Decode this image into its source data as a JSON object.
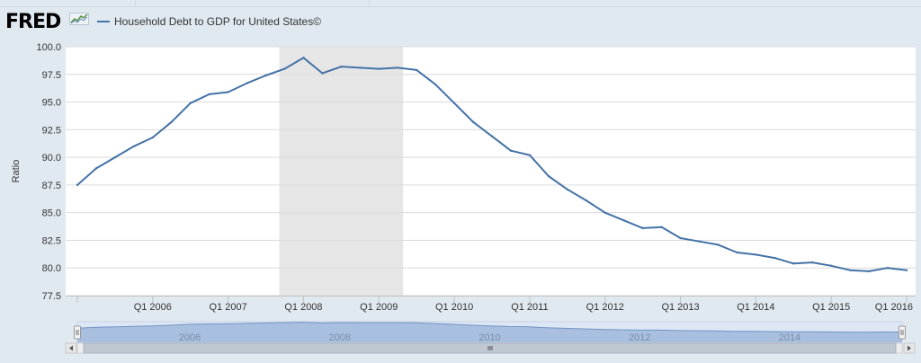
{
  "header": {
    "logo_text": "FRED",
    "legend_label": "Household Debt to GDP for United States©"
  },
  "colors": {
    "series": "#4572a7",
    "recession_band": "#e6e6e6",
    "navigator_fill": "#a9bfe0",
    "navigator_line": "#7194c6"
  },
  "chart_data": {
    "type": "line",
    "ylabel": "Ratio",
    "ylim": [
      77.5,
      100.0
    ],
    "yticks": [
      "77.5",
      "80.0",
      "82.5",
      "85.0",
      "87.5",
      "90.0",
      "92.5",
      "95.0",
      "97.5",
      "100.0"
    ],
    "xlim": [
      "2005 Q1",
      "2016 Q1"
    ],
    "xticks": [
      "Q1 2006",
      "Q1 2007",
      "Q1 2008",
      "Q1 2009",
      "Q1 2010",
      "Q1 2011",
      "Q1 2012",
      "Q1 2013",
      "Q1 2014",
      "Q1 2015",
      "Q1 2016"
    ],
    "recession": {
      "start": "2007 Q4",
      "end": "2009 Q2"
    },
    "grid": true,
    "legend_position": "top-left",
    "series": [
      {
        "name": "Household Debt to GDP for United States©",
        "x": [
          "2005 Q1",
          "2005 Q2",
          "2005 Q3",
          "2005 Q4",
          "2006 Q1",
          "2006 Q2",
          "2006 Q3",
          "2006 Q4",
          "2007 Q1",
          "2007 Q2",
          "2007 Q3",
          "2007 Q4",
          "2008 Q1",
          "2008 Q2",
          "2008 Q3",
          "2008 Q4",
          "2009 Q1",
          "2009 Q2",
          "2009 Q3",
          "2009 Q4",
          "2010 Q1",
          "2010 Q2",
          "2010 Q3",
          "2010 Q4",
          "2011 Q1",
          "2011 Q2",
          "2011 Q3",
          "2011 Q4",
          "2012 Q1",
          "2012 Q2",
          "2012 Q3",
          "2012 Q4",
          "2013 Q1",
          "2013 Q2",
          "2013 Q3",
          "2013 Q4",
          "2014 Q1",
          "2014 Q2",
          "2014 Q3",
          "2014 Q4",
          "2015 Q1",
          "2015 Q2",
          "2015 Q3",
          "2015 Q4",
          "2016 Q1"
        ],
        "values": [
          87.5,
          89.0,
          90.0,
          91.0,
          91.8,
          93.2,
          94.9,
          95.7,
          95.9,
          96.7,
          97.4,
          98.0,
          99.0,
          97.6,
          98.2,
          98.1,
          98.0,
          98.1,
          97.9,
          96.6,
          94.9,
          93.2,
          91.9,
          90.6,
          90.2,
          88.3,
          87.1,
          86.1,
          85.0,
          84.3,
          83.6,
          83.7,
          82.7,
          82.4,
          82.1,
          81.4,
          81.2,
          80.9,
          80.4,
          80.5,
          80.2,
          79.8,
          79.7,
          80.0,
          79.8
        ]
      }
    ],
    "navigator": {
      "labels": [
        "2006",
        "2008",
        "2010",
        "2012",
        "2014"
      ]
    }
  }
}
